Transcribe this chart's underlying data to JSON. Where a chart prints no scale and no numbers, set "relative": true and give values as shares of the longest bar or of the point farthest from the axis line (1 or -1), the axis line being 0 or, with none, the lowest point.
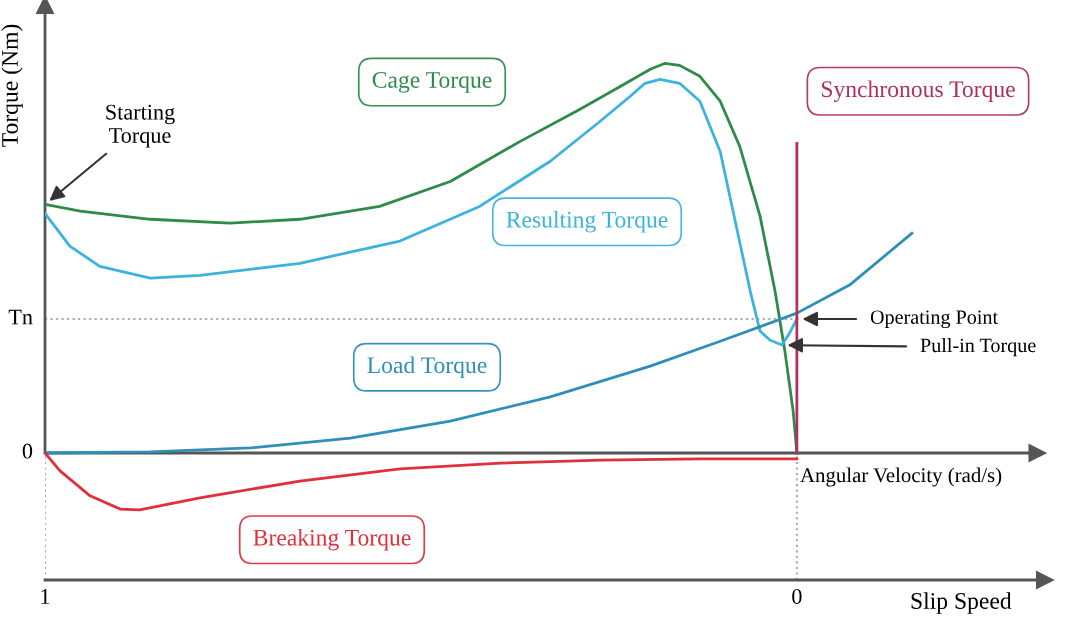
{
  "chart_data": {
    "type": "line",
    "relative": true,
    "ylabel": "Torque (Nm)",
    "xlabel": "Slip Speed",
    "xlim": [
      1,
      -0.33
    ],
    "xticks": [
      1,
      0
    ],
    "legend": false,
    "grid": false,
    "marker": "none",
    "line_style": "solid",
    "series": [
      {
        "name": "Cage Torque",
        "color": "#2e8b4a",
        "x": [
          1.0,
          0.953,
          0.86,
          0.754,
          0.661,
          0.555,
          0.461,
          0.368,
          0.289,
          0.235,
          0.195,
          0.176,
          0.156,
          0.129,
          0.102,
          0.076,
          0.049,
          0.029,
          0.016,
          0.005,
          0
        ],
        "values": [
          0.638,
          0.621,
          0.6,
          0.59,
          0.6,
          0.633,
          0.697,
          0.8,
          0.882,
          0.941,
          0.985,
          1,
          0.995,
          0.967,
          0.903,
          0.787,
          0.608,
          0.415,
          0.262,
          0.108,
          0
        ]
      },
      {
        "name": "Resulting Torque",
        "color": "#3bb3de",
        "x": [
          1.0,
          0.967,
          0.927,
          0.86,
          0.794,
          0.661,
          0.528,
          0.422,
          0.328,
          0.262,
          0.222,
          0.202,
          0.182,
          0.156,
          0.129,
          0.102,
          0.082,
          0.062,
          0.049,
          0.036,
          0.02,
          0.009,
          0
        ],
        "values": [
          0.615,
          0.531,
          0.479,
          0.449,
          0.456,
          0.487,
          0.544,
          0.633,
          0.749,
          0.851,
          0.915,
          0.949,
          0.959,
          0.949,
          0.903,
          0.774,
          0.595,
          0.415,
          0.313,
          0.29,
          0.277,
          0.31,
          0.344
        ]
      },
      {
        "name": "Load Torque",
        "color": "#2f8fb8",
        "x": [
          1.0,
          0.86,
          0.727,
          0.594,
          0.461,
          0.328,
          0.195,
          0.102,
          0,
          -0.07,
          -0.153
        ],
        "values": [
          0,
          0.003,
          0.013,
          0.038,
          0.082,
          0.144,
          0.223,
          0.287,
          0.359,
          0.431,
          0.564
        ]
      },
      {
        "name": "Breaking Torque",
        "color": "#e0303c",
        "x": [
          1.0,
          0.98,
          0.94,
          0.9,
          0.874,
          0.794,
          0.661,
          0.528,
          0.394,
          0.261,
          0.129,
          0
        ],
        "values": [
          0,
          -0.046,
          -0.11,
          -0.144,
          -0.146,
          -0.115,
          -0.072,
          -0.041,
          -0.026,
          -0.018,
          -0.015,
          -0.015
        ]
      },
      {
        "name": "Synchronous Torque",
        "color": "#b0305a",
        "x": [
          0,
          0
        ],
        "values": [
          0,
          0.795
        ]
      }
    ],
    "ref_lines": [
      {
        "axis": "y",
        "value": 0,
        "label": "0",
        "color": "#555555",
        "line_style": "solid"
      },
      {
        "axis": "y",
        "value": 0.344,
        "label": "Tn",
        "color": "#aaaaaa",
        "line_style": "dotted"
      },
      {
        "axis": "x",
        "value": 1,
        "color": "#aaaaaa",
        "line_style": "dotted"
      },
      {
        "axis": "x",
        "value": 0,
        "color": "#aaaaaa",
        "line_style": "dotted"
      }
    ],
    "annotations": [
      {
        "text": "Starting\nTorque",
        "x": 1.0,
        "y": 0.638
      },
      {
        "text": "Operating Point",
        "x": 0,
        "y": 0.344
      },
      {
        "text": "Pull-in Torque",
        "x": 0.02,
        "y": 0.277
      },
      "Angular Velocity (rad/s)"
    ]
  }
}
